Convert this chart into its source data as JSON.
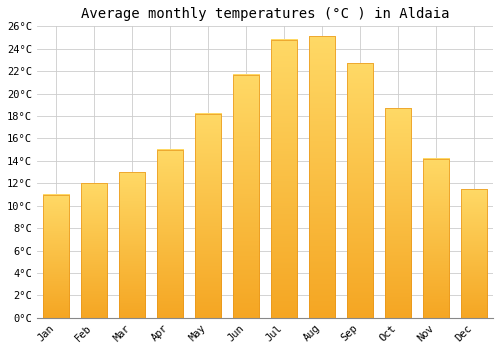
{
  "title": "Average monthly temperatures (°C ) in Aldaia",
  "months": [
    "Jan",
    "Feb",
    "Mar",
    "Apr",
    "May",
    "Jun",
    "Jul",
    "Aug",
    "Sep",
    "Oct",
    "Nov",
    "Dec"
  ],
  "temperatures": [
    11,
    12,
    13,
    15,
    18.2,
    21.7,
    24.8,
    25.1,
    22.7,
    18.7,
    14.2,
    11.5
  ],
  "bar_color_bottom": "#F5A623",
  "bar_color_top": "#FFD966",
  "bar_edge_color": "#E8951A",
  "ylim": [
    0,
    26
  ],
  "ytick_step": 2,
  "background_color": "#ffffff",
  "grid_color": "#cccccc",
  "title_fontsize": 10,
  "tick_fontsize": 7.5,
  "font_family": "monospace"
}
